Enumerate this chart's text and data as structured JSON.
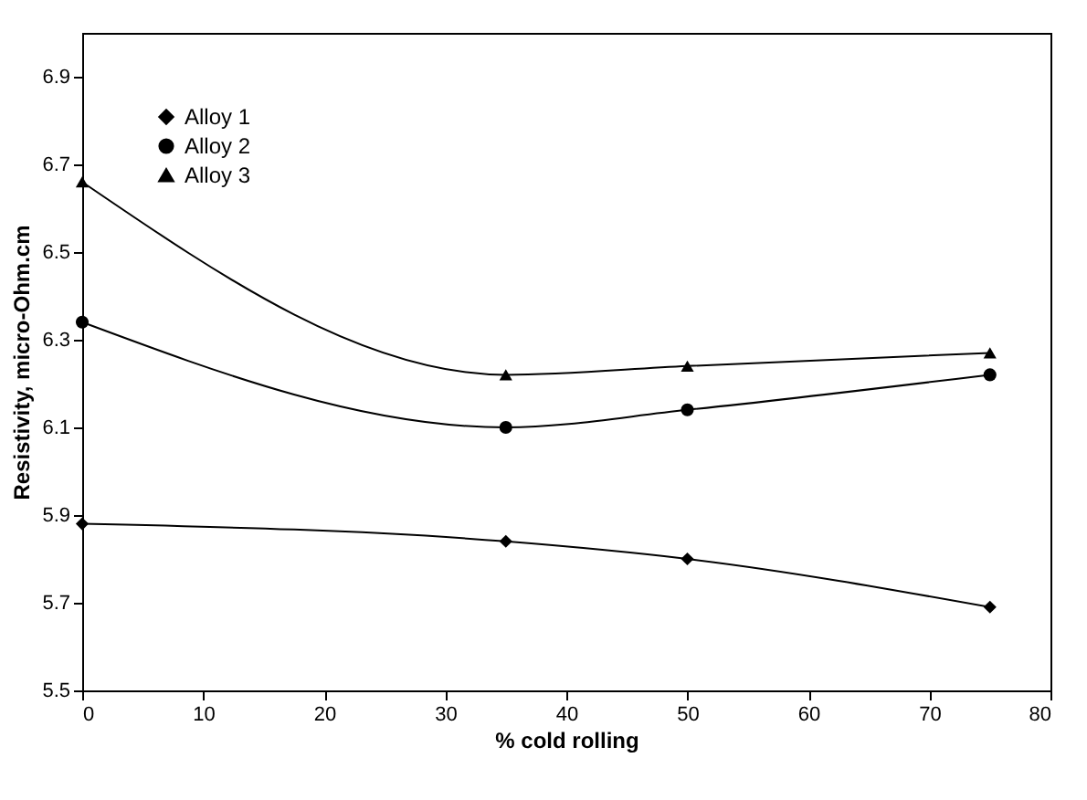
{
  "chart_data": {
    "type": "line",
    "xlabel": "% cold rolling",
    "ylabel": "Resistivity, micro-Ohm.cm",
    "x": [
      0,
      35,
      50,
      75
    ],
    "series": [
      {
        "name": "Alloy 1",
        "color": "#000000",
        "marker": "diamond",
        "values": [
          5.88,
          5.84,
          5.8,
          5.69
        ]
      },
      {
        "name": "Alloy 2",
        "color": "#000000",
        "marker": "circle",
        "values": [
          6.34,
          6.1,
          6.14,
          6.22
        ]
      },
      {
        "name": "Alloy 3",
        "color": "#000000",
        "marker": "triangle",
        "values": [
          6.66,
          6.22,
          6.24,
          6.27
        ]
      }
    ],
    "xlim": [
      0,
      80
    ],
    "xticks": [
      0,
      10,
      20,
      30,
      40,
      50,
      60,
      70,
      80
    ],
    "ylim": [
      5.5,
      7.0
    ],
    "yticks": [
      5.5,
      5.7,
      5.9,
      6.1,
      6.3,
      6.5,
      6.7,
      6.9
    ],
    "grid": false,
    "legend": "top left",
    "line_style": "solid"
  }
}
